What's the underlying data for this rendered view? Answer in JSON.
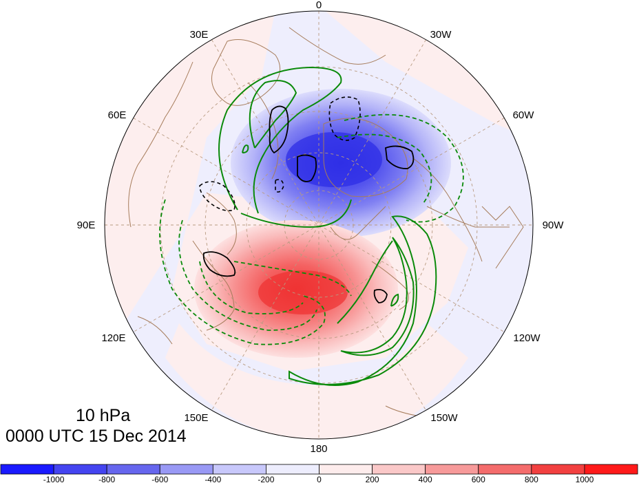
{
  "map": {
    "projection": "north-polar-stereographic",
    "longitude_labels": [
      {
        "id": "0",
        "text": "0"
      },
      {
        "id": "30w",
        "text": "30W"
      },
      {
        "id": "60w",
        "text": "60W"
      },
      {
        "id": "90w",
        "text": "90W"
      },
      {
        "id": "120w",
        "text": "120W"
      },
      {
        "id": "150w",
        "text": "150W"
      },
      {
        "id": "180",
        "text": "180"
      },
      {
        "id": "150e",
        "text": "150E"
      },
      {
        "id": "120e",
        "text": "120E"
      },
      {
        "id": "90e",
        "text": "90E"
      },
      {
        "id": "60e",
        "text": "60E"
      },
      {
        "id": "30e",
        "text": "30E"
      }
    ],
    "shading": {
      "negative_center": "Arctic / Greenland - Svalbard side",
      "positive_center": "Siberia / East Asia side"
    },
    "contours": {
      "green_solid": "positive contours",
      "green_dashed": "negative contours",
      "black_solid": "positive contours",
      "black_dashed": "negative contours"
    }
  },
  "caption": {
    "level": "10 hPa",
    "time": "0000 UTC 15 Dec 2014"
  },
  "colorbar": {
    "colors": [
      "#1a1aff",
      "#4444f0",
      "#6666ee",
      "#9999f5",
      "#c8c8fb",
      "#ededfd",
      "#fdecec",
      "#fac8c8",
      "#f79a9a",
      "#f46c6c",
      "#f24040",
      "#ff1a1a"
    ],
    "ticks": [
      "-1000",
      "-800",
      "-600",
      "-400",
      "-200",
      "0",
      "200",
      "400",
      "600",
      "800",
      "1000"
    ]
  },
  "colors": {
    "land_outline": "#a67c5b",
    "grid_line": "#b89a80",
    "contour_green": "#0a8a0a",
    "contour_black": "#000000"
  }
}
